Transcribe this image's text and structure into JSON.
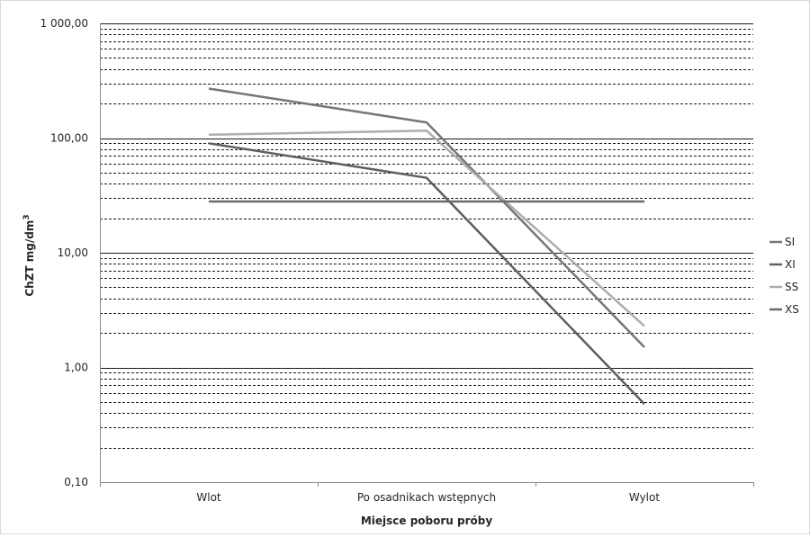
{
  "chart_data": {
    "type": "line",
    "title": "",
    "xlabel": "Miejsce poboru próby",
    "ylabel_main": "ChZT mg/dm",
    "ylabel_sup": "3",
    "yscale": "log",
    "ylim": [
      0.1,
      1000
    ],
    "y_tick_labels": [
      "0,10",
      "1,00",
      "10,00",
      "100,00",
      "1 000,00"
    ],
    "categories": [
      "Wlot",
      "Po osadnikach wstępnych",
      "Wylot"
    ],
    "grid": "dashed minor gridlines, solid major gridlines",
    "legend_position": "right",
    "series": [
      {
        "name": "SI",
        "values": [
          270,
          137,
          1.5
        ],
        "color": "#767676"
      },
      {
        "name": "XI",
        "values": [
          90,
          45,
          0.48
        ],
        "color": "#5f5f5f"
      },
      {
        "name": "SS",
        "values": [
          107,
          116,
          2.3
        ],
        "color": "#adadad"
      },
      {
        "name": "XS",
        "values": [
          28,
          28,
          28
        ],
        "color": "#6a6a6a"
      }
    ]
  }
}
